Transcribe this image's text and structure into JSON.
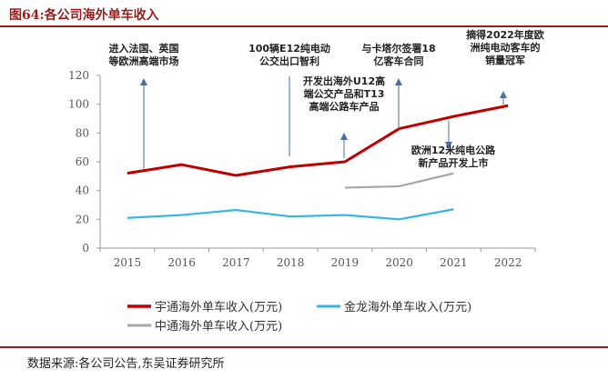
{
  "figure_title": "图64:各公司海外单车收入",
  "source": "数据来源:各公司公告,东吴证券研究所",
  "colors": {
    "yutong": "#c00000",
    "jinlong": "#33b5e5",
    "zhongtong": "#a6a6a6",
    "arrow": "#4a6fa5",
    "brand": "#9b1c1c"
  },
  "chart_data": {
    "type": "line",
    "categories": [
      "2015",
      "2016",
      "2017",
      "2018",
      "2019",
      "2020",
      "2021",
      "2022"
    ],
    "ylim": [
      0,
      120
    ],
    "yticks": [
      "0",
      "20",
      "40",
      "60",
      "80",
      "100",
      "120"
    ],
    "grid": false,
    "legend_position": "bottom",
    "series": [
      {
        "name": "宇通海外单车收入(万元)",
        "values": [
          52,
          58,
          50.5,
          56.5,
          60,
          83,
          91.5,
          99
        ]
      },
      {
        "name": "金龙海外单车收入(万元)",
        "values": [
          21,
          23,
          26.5,
          22,
          23,
          20,
          27,
          null
        ]
      },
      {
        "name": "中通海外单车收入(万元)",
        "values": [
          null,
          null,
          null,
          null,
          42,
          43,
          52,
          null
        ]
      }
    ],
    "annotations": [
      {
        "lines": [
          "进入法国、英国",
          "等欧洲高端市场"
        ]
      },
      {
        "lines": [
          "100辆E12纯电动",
          "公交出口智利"
        ]
      },
      {
        "lines": [
          "开发出海外U12高",
          "端公交产品和T13",
          "高端公路车产品"
        ]
      },
      {
        "lines": [
          "与卡塔尔签署18",
          "亿客车合同"
        ]
      },
      {
        "lines": [
          "摘得2022年度欧",
          "洲纯电动客车的",
          "销量冠军"
        ]
      },
      {
        "lines": [
          "欧洲12米纯电公路",
          "新产品开发上市"
        ]
      }
    ]
  }
}
